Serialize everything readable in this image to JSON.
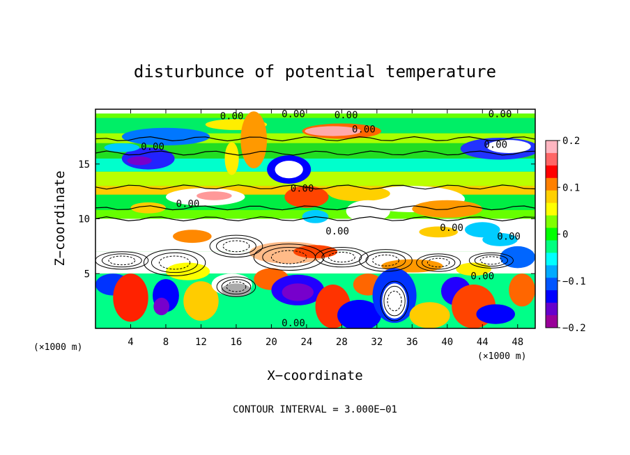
{
  "chart_data": {
    "type": "heatmap",
    "title": "disturbunce of potential temperature",
    "xlabel": "X−coordinate",
    "ylabel": "Z−coordinate",
    "x_unit": "(×1000 m)",
    "x_ticks": [
      4,
      8,
      12,
      16,
      20,
      24,
      28,
      32,
      36,
      40,
      44,
      48
    ],
    "y_ticks": [
      5,
      10,
      15
    ],
    "xlim": [
      0,
      50
    ],
    "ylim": [
      0,
      20
    ],
    "colorbar": {
      "ticks": [
        "0.2",
        "0.1",
        "0",
        "−0.1",
        "−0.2"
      ],
      "values": [
        0.2,
        0.1,
        0,
        -0.1,
        -0.2
      ],
      "colors": [
        "#ffb6c1",
        "#ff6666",
        "#ff0000",
        "#ff8000",
        "#ffd000",
        "#ffff00",
        "#80ff00",
        "#00ff00",
        "#00ff80",
        "#00ffff",
        "#00aaff",
        "#0055ff",
        "#0000ff",
        "#6600cc",
        "#990099"
      ]
    },
    "contour_labels": [
      {
        "text": "0.00",
        "x": 30.5,
        "y": 18.2
      },
      {
        "text": "0.00",
        "x": 6.5,
        "y": 16.6
      },
      {
        "text": "0.00",
        "x": 45.5,
        "y": 16.8
      },
      {
        "text": "0.00",
        "x": 23.5,
        "y": 12.8
      },
      {
        "text": "0.00",
        "x": 10.5,
        "y": 11.4
      },
      {
        "text": "0.00",
        "x": 27.5,
        "y": 8.9
      },
      {
        "text": "0.00",
        "x": 40.5,
        "y": 9.2
      },
      {
        "text": "0.00",
        "x": 47,
        "y": 8.4
      },
      {
        "text": "0.00",
        "x": 44,
        "y": 4.8
      },
      {
        "text": "0.00",
        "x": 22.5,
        "y": 0.5
      },
      {
        "text": "0.00",
        "x": 15.5,
        "y": 19.4
      },
      {
        "text": "0.00",
        "x": 22.5,
        "y": 19.6
      },
      {
        "text": "0.00",
        "x": 28.5,
        "y": 19.5
      },
      {
        "text": "0.00",
        "x": 46,
        "y": 19.6
      }
    ],
    "contour_interval": "CONTOUR INTERVAL = 3.000E−01"
  }
}
